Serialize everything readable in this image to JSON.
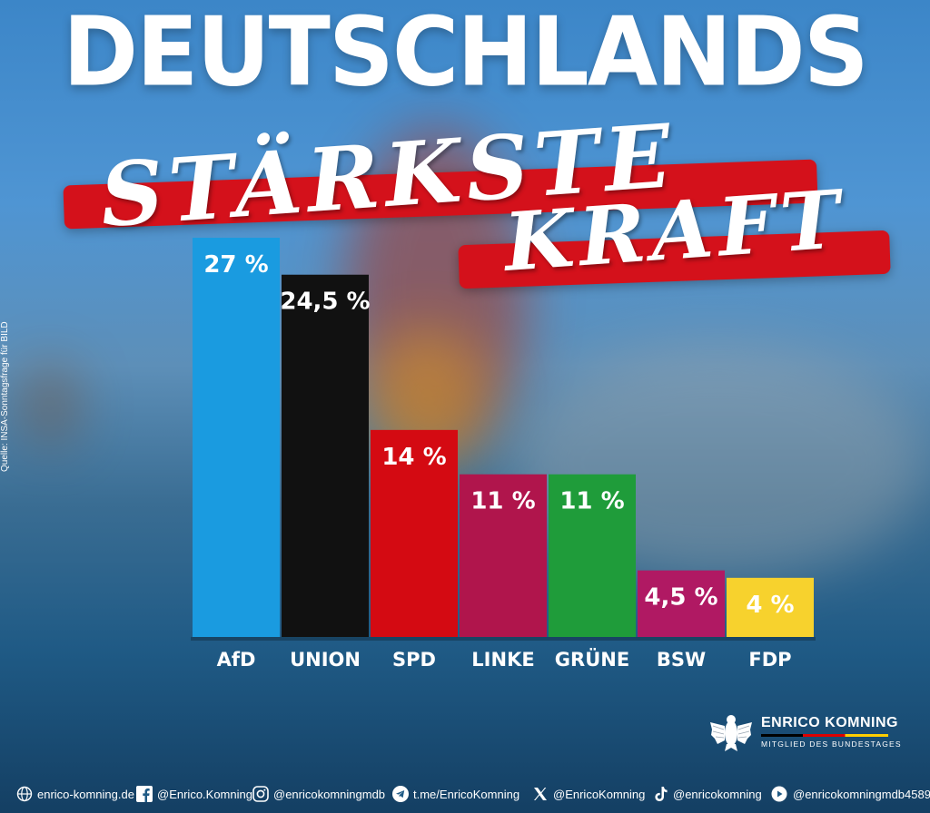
{
  "header": {
    "title": "DEUTSCHLANDS",
    "subtitle_line1": "STÄRKSTE",
    "subtitle_line2": "KRAFT"
  },
  "source_note": "Quelle: INSA-Sonntagsfrage für BILD",
  "colors": {
    "accent_red": "#d4111b",
    "afd": "#1a9be0",
    "union": "#111111",
    "spd": "#d40a12",
    "linke": "#b0154c",
    "gruene": "#1f9c3a",
    "bsw": "#b01963",
    "fdp": "#f7d22d"
  },
  "chart_data": {
    "type": "bar",
    "categories": [
      "AfD",
      "UNION",
      "SPD",
      "LINKE",
      "GRÜNE",
      "BSW",
      "FDP"
    ],
    "values": [
      27,
      24.5,
      14,
      11,
      11,
      4.5,
      4
    ],
    "value_labels": [
      "27 %",
      "24,5 %",
      "14 %",
      "11 %",
      "11 %",
      "4,5 %",
      "4 %"
    ],
    "ylim": [
      0,
      27
    ],
    "grid": false,
    "legend": "none"
  },
  "branding": {
    "name": "ENRICO KOMNING",
    "role": "MITGLIED DES BUNDESTAGES",
    "logo_icon": "bundesadler-icon"
  },
  "footer": {
    "links": [
      {
        "icon": "globe-icon",
        "text": "enrico-komning.de"
      },
      {
        "icon": "facebook-icon",
        "text": "@Enrico.Komning"
      },
      {
        "icon": "instagram-icon",
        "text": "@enricokomningmdb"
      },
      {
        "icon": "telegram-icon",
        "text": "t.me/EnricoKomning"
      },
      {
        "icon": "x-icon",
        "text": "@EnricoKomning"
      },
      {
        "icon": "tiktok-icon",
        "text": "@enricokomning"
      },
      {
        "icon": "youtube-icon",
        "text": "@enricokomningmdb4589"
      }
    ]
  }
}
